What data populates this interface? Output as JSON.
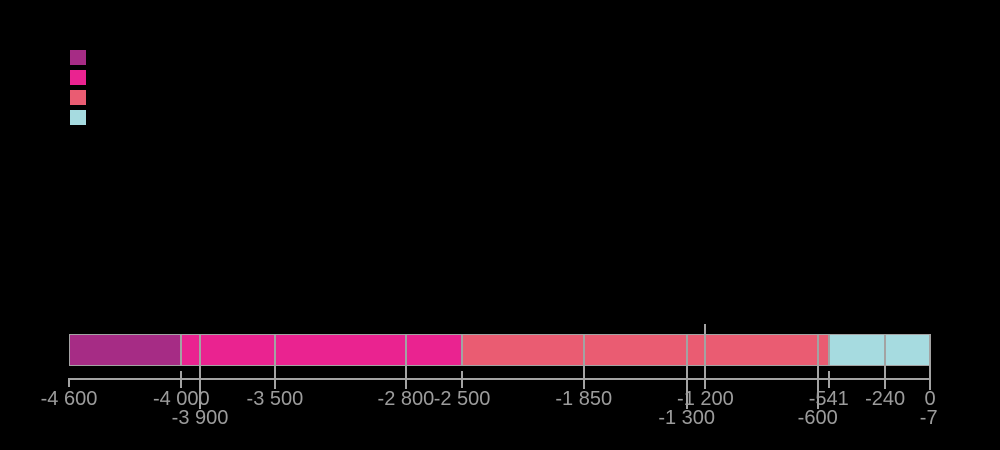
{
  "page": {
    "background_color": "#000000"
  },
  "legend": {
    "items": [
      {
        "swatch_color": "#a62c85"
      },
      {
        "swatch_color": "#ea2390"
      },
      {
        "swatch_color": "#ea5c72"
      },
      {
        "swatch_color": "#a6dbe0"
      }
    ]
  },
  "chart_data": {
    "type": "bar",
    "orientation": "horizontal",
    "title": "",
    "xlabel": "",
    "ylabel": "",
    "axis_range": [
      -4600,
      0
    ],
    "grid": false,
    "legend_position": "top-left",
    "axis_line_color": "#a3a3a3",
    "tick_label_color": "#9c9c9c",
    "segments": [
      {
        "start": -4600,
        "end": -4000,
        "color": "#a62c85"
      },
      {
        "start": -4000,
        "end": -2500,
        "color": "#ea2390"
      },
      {
        "start": -2500,
        "end": -541,
        "color": "#ea5c72"
      },
      {
        "start": -541,
        "end": 0,
        "color": "#a6dbe0"
      }
    ],
    "ticks": [
      {
        "value": -4600,
        "label": "-4 600",
        "row": 1,
        "line": "axis-tick"
      },
      {
        "value": -4000,
        "label": "-4 000",
        "row": 1,
        "line": "tick"
      },
      {
        "value": -3900,
        "label": "-3 900",
        "row": 2,
        "line": "cross-row2"
      },
      {
        "value": -3500,
        "label": "-3 500",
        "row": 1,
        "line": "cross"
      },
      {
        "value": -2800,
        "label": "-2 800",
        "row": 1,
        "line": "cross"
      },
      {
        "value": -2500,
        "label": "-2 500",
        "row": 1,
        "line": "tick"
      },
      {
        "value": -1850,
        "label": "-1 850",
        "row": 1,
        "line": "cross"
      },
      {
        "value": -1300,
        "label": "-1 300",
        "row": 2,
        "line": "cross-row2"
      },
      {
        "value": -1200,
        "label": "-1 200",
        "row": 1,
        "line": "above"
      },
      {
        "value": -600,
        "label": "-600",
        "row": 2,
        "line": "cross-row2"
      },
      {
        "value": -541,
        "label": "-541",
        "row": 1,
        "line": "tick"
      },
      {
        "value": -240,
        "label": "-240",
        "row": 1,
        "line": "cross"
      },
      {
        "value": 0,
        "label": "0",
        "row": 1,
        "line": "edge"
      },
      {
        "value": -7,
        "label": "-7",
        "row": 2,
        "line": "none"
      }
    ]
  }
}
